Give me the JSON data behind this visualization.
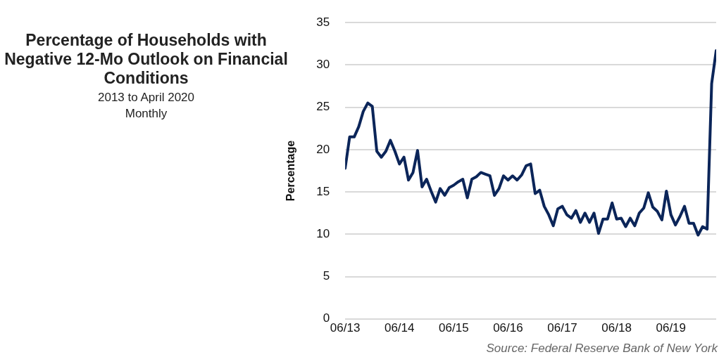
{
  "chart_data": {
    "type": "line",
    "title": "Percentage of Households with Negative 12-Mo Outlook on Financial Conditions",
    "subtitle": "2013 to April 2020\nMonthly",
    "ylabel": "Percentage",
    "annotations": [
      "Source:  Federal Reserve Bank of New York"
    ],
    "x": [
      "2013-06",
      "2013-07",
      "2013-08",
      "2013-09",
      "2013-10",
      "2013-11",
      "2013-12",
      "2014-01",
      "2014-02",
      "2014-03",
      "2014-04",
      "2014-05",
      "2014-06",
      "2014-07",
      "2014-08",
      "2014-09",
      "2014-10",
      "2014-11",
      "2014-12",
      "2015-01",
      "2015-02",
      "2015-03",
      "2015-04",
      "2015-05",
      "2015-06",
      "2015-07",
      "2015-08",
      "2015-09",
      "2015-10",
      "2015-11",
      "2015-12",
      "2016-01",
      "2016-02",
      "2016-03",
      "2016-04",
      "2016-05",
      "2016-06",
      "2016-07",
      "2016-08",
      "2016-09",
      "2016-10",
      "2016-11",
      "2016-12",
      "2017-01",
      "2017-02",
      "2017-03",
      "2017-04",
      "2017-05",
      "2017-06",
      "2017-07",
      "2017-08",
      "2017-09",
      "2017-10",
      "2017-11",
      "2017-12",
      "2018-01",
      "2018-02",
      "2018-03",
      "2018-04",
      "2018-05",
      "2018-06",
      "2018-07",
      "2018-08",
      "2018-09",
      "2018-10",
      "2018-11",
      "2018-12",
      "2019-01",
      "2019-02",
      "2019-03",
      "2019-04",
      "2019-05",
      "2019-06",
      "2019-07",
      "2019-08",
      "2019-09",
      "2019-10",
      "2019-11",
      "2019-12",
      "2020-01",
      "2020-02",
      "2020-03",
      "2020-04"
    ],
    "series": [
      {
        "color": "#0b2559",
        "values": [
          17.8,
          21.5,
          21.5,
          22.7,
          24.5,
          25.5,
          25.1,
          19.8,
          19.1,
          19.8,
          21.1,
          19.8,
          18.3,
          19.1,
          16.4,
          17.3,
          19.9,
          15.6,
          16.5,
          15.1,
          13.8,
          15.4,
          14.6,
          15.5,
          15.8,
          16.2,
          16.5,
          14.3,
          16.5,
          16.8,
          17.3,
          17.1,
          16.9,
          14.6,
          15.4,
          16.9,
          16.4,
          16.9,
          16.4,
          17.0,
          18.1,
          18.3,
          14.8,
          15.2,
          13.3,
          12.3,
          11.0,
          13.0,
          13.3,
          12.3,
          11.9,
          12.8,
          11.4,
          12.5,
          11.4,
          12.5,
          10.1,
          11.8,
          11.8,
          13.7,
          11.8,
          11.9,
          10.9,
          11.9,
          11.0,
          12.5,
          13.1,
          14.9,
          13.2,
          12.7,
          11.7,
          15.1,
          12.3,
          11.1,
          12.1,
          13.3,
          11.3,
          11.3,
          9.9,
          10.9,
          10.6,
          27.8,
          31.7
        ]
      }
    ],
    "xlim": [
      "2013-06",
      "2020-04"
    ],
    "xticks": [
      {
        "value": "2013-06",
        "label": "06/13"
      },
      {
        "value": "2014-06",
        "label": "06/14"
      },
      {
        "value": "2015-06",
        "label": "06/15"
      },
      {
        "value": "2016-06",
        "label": "06/16"
      },
      {
        "value": "2017-06",
        "label": "06/17"
      },
      {
        "value": "2018-06",
        "label": "06/18"
      },
      {
        "value": "2019-06",
        "label": "06/19"
      }
    ],
    "ylim": [
      0,
      35
    ],
    "yticks": [
      0,
      5,
      10,
      15,
      20,
      25,
      30,
      35
    ],
    "grid": "y",
    "legend": false,
    "marker": "none",
    "line_style": "solid"
  }
}
